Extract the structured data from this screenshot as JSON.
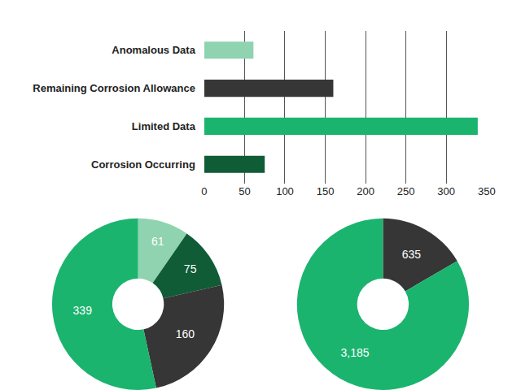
{
  "chart_data": [
    {
      "type": "bar",
      "orientation": "horizontal",
      "categories": [
        "Anomalous Data",
        "Remaining Corrosion Allowance",
        "Limited Data",
        "Corrosion Occurring"
      ],
      "values": [
        61,
        160,
        339,
        75
      ],
      "colors": [
        "#8fd3b0",
        "#363636",
        "#1bb46e",
        "#0f5c37"
      ],
      "xlim": [
        0,
        350
      ],
      "xticks": [
        0,
        50,
        100,
        150,
        200,
        250,
        300,
        350
      ],
      "grid": true
    },
    {
      "type": "pie",
      "values": [
        61,
        75,
        160,
        339
      ],
      "colors": [
        "#8fd3b0",
        "#0f5c37",
        "#363636",
        "#1bb46e"
      ],
      "data_labels": true
    },
    {
      "type": "pie",
      "values": [
        635,
        3185
      ],
      "value_labels": [
        "635",
        "3,185"
      ],
      "colors": [
        "#363636",
        "#1bb46e"
      ],
      "data_labels": true
    }
  ]
}
